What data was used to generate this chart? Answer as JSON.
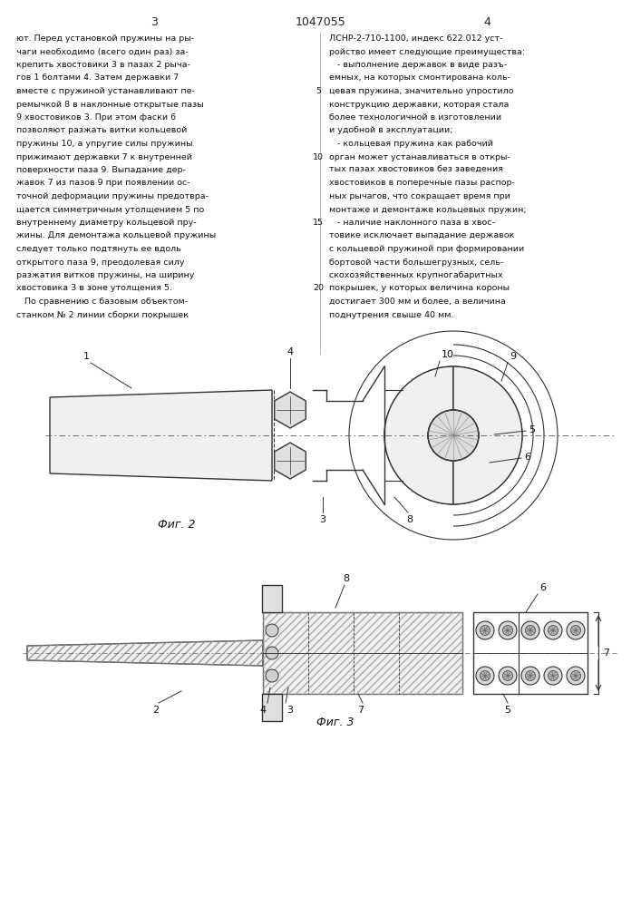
{
  "bg_color": "#ffffff",
  "page_num_left": "3",
  "page_num_center": "1047055",
  "page_num_right": "4",
  "left_col_text": [
    "ют. Перед установкой пружины на ры-",
    "чаги необходимо (всего один раз) за-",
    "крепить хвостовики 3 в пазах 2 рыча-",
    "гов 1 болтами 4. Затем державки 7",
    "вместе с пружиной устанавливают пе-",
    "ремычкой 8 в наклонные открытые пазы",
    "9 хвостовиков 3. При этом фаски 6",
    "позволяют разжать витки кольцевой",
    "пружины 10, а упругие силы пружины",
    "прижимают державки 7 к внутренней",
    "поверхности паза 9. Выпадание дер-",
    "жавок 7 из пазов 9 при появлении ос-",
    "точной деформации пружины предотвра-",
    "щается симметричным утолщением 5 по",
    "внутреннему диаметру кольцевой пру-",
    "жины. Для демонтажа кольцевой пружины",
    "следует только подтянуть ее вдоль",
    "открытого паза 9, преодолевая силу",
    "разжатия витков пружины, на ширину",
    "хвостовика 3 в зоне утолщения 5.",
    "   По сравнению с базовым объектом-",
    "станком № 2 линии сборки покрышек"
  ],
  "right_col_text": [
    "ЛСНР-2-710-1100, индекс 622.012 уст-",
    "ройство имеет следующие преимущества:",
    "   - выполнение державок в виде разъ-",
    "емных, на которых смонтирована коль-",
    "цевая пружина, значительно упростило",
    "конструкцию державки, которая стала",
    "более технологичной в изготовлении",
    "и удобной в эксплуатации;",
    "   - кольцевая пружина как рабочий",
    "орган может устанавливаться в откры-",
    "тых пазах хвостовиков без заведения",
    "хвостовиков в поперечные пазы распор-",
    "ных рычагов, что сокращает время при",
    "монтаже и демонтаже кольцевых пружин;",
    "   - наличие наклонного паза в хвос-",
    "товике исключает выпадание державок",
    "с кольцевой пружиной при формировании",
    "бортовой части большегрузных, сель-",
    "скохозяйственных крупногабаритных",
    "покрышек, у которых величина короны",
    "достигает 300 мм и более, а величина",
    "поднутрения свыше 40 мм."
  ],
  "line_numbers": [
    "5",
    "10",
    "15",
    "20"
  ],
  "fig2_label": "Фиг. 2",
  "fig3_label": "Фиг. 3"
}
